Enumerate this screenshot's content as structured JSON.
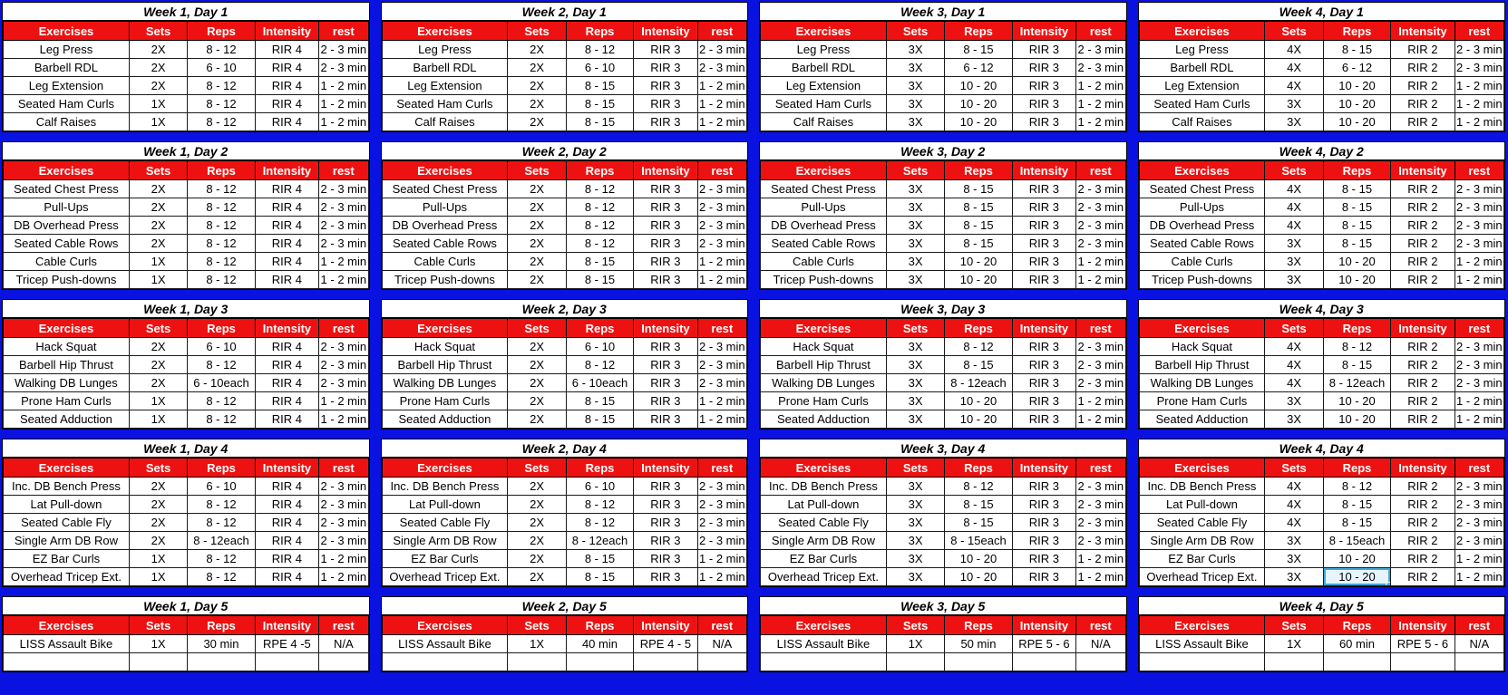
{
  "columns": [
    "Exercises",
    "Sets",
    "Reps",
    "Intensity",
    "rest"
  ],
  "colors": {
    "header_bg": "#ee1111",
    "header_text": "#ffffff",
    "grid_blue": "#0a12e2",
    "cell_bg": "#ffffff",
    "cell_text": "#000000",
    "selection_border": "#3fa7dc",
    "selection_fill": "#e8f4fc"
  },
  "selection": {
    "day_index": 3,
    "week_index": 3,
    "row_index": 5,
    "col_index": 2,
    "value": "10 - 20"
  },
  "days": [
    {
      "weeks": [
        {
          "title": "Week 1, Day 1",
          "rows": [
            [
              "Leg Press",
              "2X",
              "8 - 12",
              "RIR 4",
              "2 - 3 min"
            ],
            [
              "Barbell RDL",
              "2X",
              "6 - 10",
              "RIR 4",
              "2 - 3 min"
            ],
            [
              "Leg Extension",
              "2X",
              "8 - 12",
              "RIR 4",
              "1 - 2 min"
            ],
            [
              "Seated Ham Curls",
              "1X",
              "8 - 12",
              "RIR 4",
              "1 - 2 min"
            ],
            [
              "Calf Raises",
              "1X",
              "8 - 12",
              "RIR 4",
              "1 - 2 min"
            ]
          ]
        },
        {
          "title": "Week 2, Day 1",
          "rows": [
            [
              "Leg Press",
              "2X",
              "8 - 12",
              "RIR 3",
              "2 - 3 min"
            ],
            [
              "Barbell RDL",
              "2X",
              "6 - 10",
              "RIR 3",
              "2 - 3 min"
            ],
            [
              "Leg Extension",
              "2X",
              "8 - 15",
              "RIR 3",
              "1 - 2 min"
            ],
            [
              "Seated Ham Curls",
              "2X",
              "8 - 15",
              "RIR 3",
              "1 - 2 min"
            ],
            [
              "Calf Raises",
              "2X",
              "8 - 15",
              "RIR 3",
              "1 - 2 min"
            ]
          ]
        },
        {
          "title": "Week 3, Day 1",
          "rows": [
            [
              "Leg Press",
              "3X",
              "8 - 15",
              "RIR 3",
              "2 - 3 min"
            ],
            [
              "Barbell RDL",
              "3X",
              "6 - 12",
              "RIR 3",
              "2 - 3 min"
            ],
            [
              "Leg Extension",
              "3X",
              "10 - 20",
              "RIR 3",
              "1 - 2 min"
            ],
            [
              "Seated Ham Curls",
              "3X",
              "10 - 20",
              "RIR 3",
              "1 - 2 min"
            ],
            [
              "Calf Raises",
              "3X",
              "10 - 20",
              "RIR 3",
              "1 - 2 min"
            ]
          ]
        },
        {
          "title": "Week 4, Day 1",
          "rows": [
            [
              "Leg Press",
              "4X",
              "8 - 15",
              "RIR 2",
              "2 - 3 min"
            ],
            [
              "Barbell RDL",
              "4X",
              "6 - 12",
              "RIR 2",
              "2 - 3 min"
            ],
            [
              "Leg Extension",
              "4X",
              "10 - 20",
              "RIR 2",
              "1 - 2 min"
            ],
            [
              "Seated Ham Curls",
              "3X",
              "10 - 20",
              "RIR 2",
              "1 - 2 min"
            ],
            [
              "Calf Raises",
              "3X",
              "10 - 20",
              "RIR 2",
              "1 - 2 min"
            ]
          ]
        }
      ]
    },
    {
      "weeks": [
        {
          "title": "Week 1, Day 2",
          "rows": [
            [
              "Seated Chest Press",
              "2X",
              "8 - 12",
              "RIR 4",
              "2 - 3 min"
            ],
            [
              "Pull-Ups",
              "2X",
              "8 - 12",
              "RIR 4",
              "2 - 3 min"
            ],
            [
              "DB Overhead Press",
              "2X",
              "8 - 12",
              "RIR 4",
              "2 - 3 min"
            ],
            [
              "Seated Cable Rows",
              "2X",
              "8 - 12",
              "RIR 4",
              "2 - 3 min"
            ],
            [
              "Cable Curls",
              "1X",
              "8 - 12",
              "RIR 4",
              "1 - 2 min"
            ],
            [
              "Tricep Push-downs",
              "1X",
              "8 - 12",
              "RIR 4",
              "1 - 2 min"
            ]
          ]
        },
        {
          "title": "Week 2, Day 2",
          "rows": [
            [
              "Seated Chest Press",
              "2X",
              "8 - 12",
              "RIR 3",
              "2 - 3 min"
            ],
            [
              "Pull-Ups",
              "2X",
              "8 - 12",
              "RIR 3",
              "2 - 3 min"
            ],
            [
              "DB Overhead Press",
              "2X",
              "8 - 12",
              "RIR 3",
              "2 - 3 min"
            ],
            [
              "Seated Cable Rows",
              "2X",
              "8 - 12",
              "RIR 3",
              "2 - 3 min"
            ],
            [
              "Cable Curls",
              "2X",
              "8 - 15",
              "RIR 3",
              "1 - 2 min"
            ],
            [
              "Tricep Push-downs",
              "2X",
              "8 - 15",
              "RIR 3",
              "1 - 2 min"
            ]
          ]
        },
        {
          "title": "Week 3, Day 2",
          "rows": [
            [
              "Seated Chest Press",
              "3X",
              "8 - 15",
              "RIR 3",
              "2 - 3 min"
            ],
            [
              "Pull-Ups",
              "3X",
              "8 - 15",
              "RIR 3",
              "2 - 3 min"
            ],
            [
              "DB Overhead Press",
              "3X",
              "8 - 15",
              "RIR 3",
              "2 - 3 min"
            ],
            [
              "Seated Cable Rows",
              "3X",
              "8 - 15",
              "RIR 3",
              "2 - 3 min"
            ],
            [
              "Cable Curls",
              "3X",
              "10 - 20",
              "RIR 3",
              "1 - 2 min"
            ],
            [
              "Tricep Push-downs",
              "3X",
              "10 - 20",
              "RIR 3",
              "1 - 2 min"
            ]
          ]
        },
        {
          "title": "Week 4, Day 2",
          "rows": [
            [
              "Seated Chest Press",
              "4X",
              "8 - 15",
              "RIR 2",
              "2 - 3 min"
            ],
            [
              "Pull-Ups",
              "4X",
              "8 - 15",
              "RIR 2",
              "2 - 3 min"
            ],
            [
              "DB Overhead Press",
              "4X",
              "8 - 15",
              "RIR 2",
              "2 - 3 min"
            ],
            [
              "Seated Cable Rows",
              "3X",
              "8 - 15",
              "RIR 2",
              "2 - 3 min"
            ],
            [
              "Cable Curls",
              "3X",
              "10 - 20",
              "RIR 2",
              "1 - 2 min"
            ],
            [
              "Tricep Push-downs",
              "3X",
              "10 - 20",
              "RIR 2",
              "1 - 2 min"
            ]
          ]
        }
      ]
    },
    {
      "weeks": [
        {
          "title": "Week 1, Day 3",
          "rows": [
            [
              "Hack Squat",
              "2X",
              "6 - 10",
              "RIR 4",
              "2 - 3 min"
            ],
            [
              "Barbell Hip Thrust",
              "2X",
              "8 - 12",
              "RIR 4",
              "2 - 3 min"
            ],
            [
              "Walking DB Lunges",
              "2X",
              "6 - 10each",
              "RIR 4",
              "2 - 3 min"
            ],
            [
              "Prone Ham Curls",
              "1X",
              "8 - 12",
              "RIR 4",
              "1 - 2 min"
            ],
            [
              "Seated Adduction",
              "1X",
              "8 - 12",
              "RIR 4",
              "1 - 2 min"
            ]
          ]
        },
        {
          "title": "Week 2, Day 3",
          "rows": [
            [
              "Hack Squat",
              "2X",
              "6 - 10",
              "RIR 3",
              "2 - 3 min"
            ],
            [
              "Barbell Hip Thrust",
              "2X",
              "8 - 12",
              "RIR 3",
              "2 - 3 min"
            ],
            [
              "Walking DB Lunges",
              "2X",
              "6 - 10each",
              "RIR 3",
              "2 - 3 min"
            ],
            [
              "Prone Ham Curls",
              "2X",
              "8 - 15",
              "RIR 3",
              "1 - 2 min"
            ],
            [
              "Seated Adduction",
              "2X",
              "8 - 15",
              "RIR 3",
              "1 - 2 min"
            ]
          ]
        },
        {
          "title": "Week 3, Day 3",
          "rows": [
            [
              "Hack Squat",
              "3X",
              "8 - 12",
              "RIR 3",
              "2 - 3 min"
            ],
            [
              "Barbell Hip Thrust",
              "3X",
              "8 - 15",
              "RIR 3",
              "2 - 3 min"
            ],
            [
              "Walking DB Lunges",
              "3X",
              "8 - 12each",
              "RIR 3",
              "2 - 3 min"
            ],
            [
              "Prone Ham Curls",
              "3X",
              "10 - 20",
              "RIR 3",
              "1 - 2 min"
            ],
            [
              "Seated Adduction",
              "3X",
              "10 - 20",
              "RIR 3",
              "1 - 2 min"
            ]
          ]
        },
        {
          "title": "Week 4, Day 3",
          "rows": [
            [
              "Hack Squat",
              "4X",
              "8 - 12",
              "RIR 2",
              "2 - 3 min"
            ],
            [
              "Barbell Hip Thrust",
              "4X",
              "8 - 15",
              "RIR 2",
              "2 - 3 min"
            ],
            [
              "Walking DB Lunges",
              "4X",
              "8 - 12each",
              "RIR 2",
              "2 - 3 min"
            ],
            [
              "Prone Ham Curls",
              "3X",
              "10 - 20",
              "RIR 2",
              "1 - 2 min"
            ],
            [
              "Seated Adduction",
              "3X",
              "10 - 20",
              "RIR 2",
              "1 - 2 min"
            ]
          ]
        }
      ]
    },
    {
      "weeks": [
        {
          "title": "Week 1, Day 4",
          "rows": [
            [
              "Inc. DB Bench Press",
              "2X",
              "6 - 10",
              "RIR 4",
              "2 - 3 min"
            ],
            [
              "Lat Pull-down",
              "2X",
              "8 - 12",
              "RIR 4",
              "2 - 3 min"
            ],
            [
              "Seated Cable Fly",
              "2X",
              "8 - 12",
              "RIR 4",
              "2 - 3 min"
            ],
            [
              "Single Arm DB Row",
              "2X",
              "8 - 12each",
              "RIR 4",
              "2 - 3 min"
            ],
            [
              "EZ Bar Curls",
              "1X",
              "8 - 12",
              "RIR 4",
              "1 - 2 min"
            ],
            [
              "Overhead Tricep Ext.",
              "1X",
              "8 - 12",
              "RIR 4",
              "1 - 2 min"
            ]
          ]
        },
        {
          "title": "Week 2, Day 4",
          "rows": [
            [
              "Inc. DB Bench Press",
              "2X",
              "6 - 10",
              "RIR 3",
              "2 - 3 min"
            ],
            [
              "Lat Pull-down",
              "2X",
              "8 - 12",
              "RIR 3",
              "2 - 3 min"
            ],
            [
              "Seated Cable Fly",
              "2X",
              "8 - 12",
              "RIR 3",
              "2 - 3 min"
            ],
            [
              "Single Arm DB Row",
              "2X",
              "8 - 12each",
              "RIR 3",
              "2 - 3 min"
            ],
            [
              "EZ Bar Curls",
              "2X",
              "8 - 15",
              "RIR 3",
              "1 - 2 min"
            ],
            [
              "Overhead Tricep Ext.",
              "2X",
              "8 - 15",
              "RIR 3",
              "1 - 2 min"
            ]
          ]
        },
        {
          "title": "Week 3, Day 4",
          "rows": [
            [
              "Inc. DB Bench Press",
              "3X",
              "8 - 12",
              "RIR 3",
              "2 - 3 min"
            ],
            [
              "Lat Pull-down",
              "3X",
              "8 - 15",
              "RIR 3",
              "2 - 3 min"
            ],
            [
              "Seated Cable Fly",
              "3X",
              "8 - 15",
              "RIR 3",
              "2 - 3 min"
            ],
            [
              "Single Arm DB Row",
              "3X",
              "8 - 15each",
              "RIR 3",
              "2 - 3 min"
            ],
            [
              "EZ Bar Curls",
              "3X",
              "10 - 20",
              "RIR 3",
              "1 - 2 min"
            ],
            [
              "Overhead Tricep Ext.",
              "3X",
              "10 - 20",
              "RIR 3",
              "1 - 2 min"
            ]
          ]
        },
        {
          "title": "Week 4, Day 4",
          "rows": [
            [
              "Inc. DB Bench Press",
              "4X",
              "8 - 12",
              "RIR 2",
              "2 - 3 min"
            ],
            [
              "Lat Pull-down",
              "4X",
              "8 - 15",
              "RIR 2",
              "2 - 3 min"
            ],
            [
              "Seated Cable Fly",
              "4X",
              "8 - 15",
              "RIR 2",
              "2 - 3 min"
            ],
            [
              "Single Arm DB Row",
              "3X",
              "8 - 15each",
              "RIR 2",
              "2 - 3 min"
            ],
            [
              "EZ Bar Curls",
              "3X",
              "10 - 20",
              "RIR 2",
              "1 - 2 min"
            ],
            [
              "Overhead Tricep Ext.",
              "3X",
              "10 - 20",
              "RIR 2",
              "1 - 2 min"
            ]
          ]
        }
      ]
    },
    {
      "weeks": [
        {
          "title": "Week 1, Day 5",
          "rows": [
            [
              "LISS Assault Bike",
              "1X",
              "30 min",
              "RPE 4 -5",
              "N/A"
            ],
            [
              "",
              "",
              "",
              "",
              ""
            ]
          ]
        },
        {
          "title": "Week 2, Day 5",
          "rows": [
            [
              "LISS Assault Bike",
              "1X",
              "40 min",
              "RPE 4 - 5",
              "N/A"
            ],
            [
              "",
              "",
              "",
              "",
              ""
            ]
          ]
        },
        {
          "title": "Week 3, Day 5",
          "rows": [
            [
              "LISS Assault Bike",
              "1X",
              "50 min",
              "RPE 5 - 6",
              "N/A"
            ],
            [
              "",
              "",
              "",
              "",
              ""
            ]
          ]
        },
        {
          "title": "Week 4, Day 5",
          "rows": [
            [
              "LISS Assault Bike",
              "1X",
              "60 min",
              "RPE 5 - 6",
              "N/A"
            ],
            [
              "",
              "",
              "",
              "",
              ""
            ]
          ]
        }
      ]
    }
  ]
}
